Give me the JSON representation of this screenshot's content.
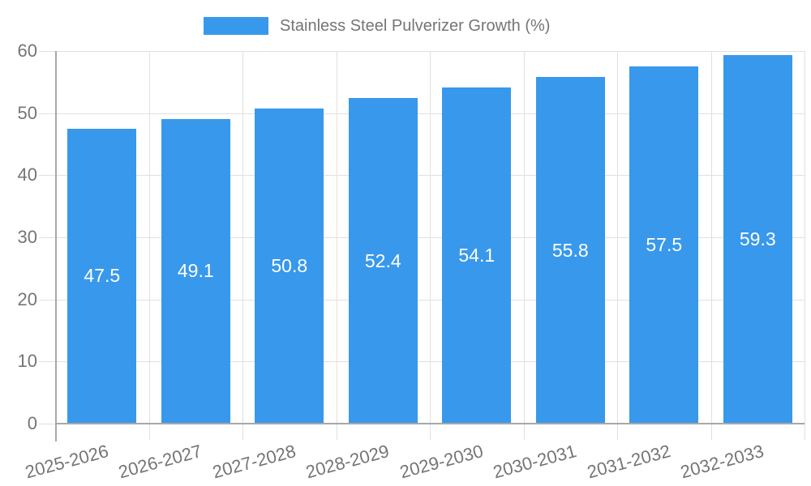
{
  "chart_data": {
    "type": "bar",
    "title": "",
    "legend": {
      "label": "Stainless Steel Pulverizer Growth (%)",
      "position": "top-center"
    },
    "categories": [
      "2025-2026",
      "2026-2027",
      "2027-2028",
      "2028-2029",
      "2029-2030",
      "2030-2031",
      "2031-2032",
      "2032-2033"
    ],
    "series": [
      {
        "name": "Stainless Steel Pulverizer Growth (%)",
        "values": [
          47.5,
          49.1,
          50.8,
          52.4,
          54.1,
          55.8,
          57.5,
          59.3
        ]
      }
    ],
    "xlabel": "",
    "ylabel": "",
    "ylim": [
      0,
      60
    ],
    "yticks": [
      0,
      10,
      20,
      30,
      40,
      50,
      60
    ],
    "grid": true,
    "value_labels": {
      "show": true,
      "position": "center-of-bar"
    }
  },
  "colors": {
    "bar": "#3898ec",
    "axis": "#a8a8a8",
    "grid": "#e0e0e0",
    "text": "#757575",
    "value_label": "#ffffff",
    "background": "#ffffff"
  }
}
